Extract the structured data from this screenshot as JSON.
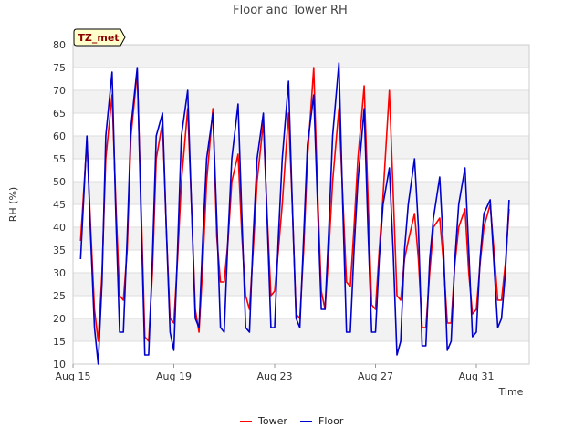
{
  "chart_data": {
    "type": "line",
    "title": "Floor and Tower RH",
    "xlabel": "Time",
    "ylabel": "RH (%)",
    "site_tag": "TZ_met",
    "xlim": [
      0,
      18.1
    ],
    "ylim": [
      10,
      80
    ],
    "yticks": [
      10,
      15,
      20,
      25,
      30,
      35,
      40,
      45,
      50,
      55,
      60,
      65,
      70,
      75,
      80
    ],
    "xticks": [
      {
        "label": "Aug 15",
        "value": 0
      },
      {
        "label": "Aug 19",
        "value": 4
      },
      {
        "label": "Aug 23",
        "value": 8
      },
      {
        "label": "Aug 27",
        "value": 12
      },
      {
        "label": "Aug 31",
        "value": 16
      }
    ],
    "grid": true,
    "legend_position": "bottom-center",
    "colors": {
      "Tower": "#ff0000",
      "Floor": "#0000cc",
      "band": "#f2f2f2",
      "grid": "#dddddd"
    },
    "series": [
      {
        "name": "Tower",
        "color": "#ff0000",
        "x": [
          0.3,
          0.55,
          0.7,
          0.85,
          1.0,
          1.15,
          1.3,
          1.55,
          1.7,
          1.85,
          2.0,
          2.15,
          2.3,
          2.55,
          2.7,
          2.85,
          3.0,
          3.15,
          3.3,
          3.55,
          3.7,
          3.85,
          4.0,
          4.15,
          4.3,
          4.55,
          4.7,
          4.85,
          5.0,
          5.15,
          5.3,
          5.55,
          5.7,
          5.85,
          6.0,
          6.15,
          6.3,
          6.55,
          6.7,
          6.85,
          7.0,
          7.15,
          7.3,
          7.55,
          7.7,
          7.85,
          8.0,
          8.15,
          8.3,
          8.55,
          8.7,
          8.85,
          9.0,
          9.15,
          9.3,
          9.55,
          9.7,
          9.85,
          10.0,
          10.15,
          10.3,
          10.55,
          10.7,
          10.85,
          11.0,
          11.15,
          11.3,
          11.55,
          11.7,
          11.85,
          12.0,
          12.15,
          12.3,
          12.55,
          12.7,
          12.85,
          13.0,
          13.15,
          13.3,
          13.55,
          13.7,
          13.85,
          14.0,
          14.15,
          14.3,
          14.55,
          14.7,
          14.85,
          15.0,
          15.15,
          15.3,
          15.55,
          15.7,
          15.85,
          16.0,
          16.15,
          16.3,
          16.55,
          16.7,
          16.85,
          17.0,
          17.15,
          17.3
        ],
        "values": [
          37,
          59,
          40,
          22,
          15,
          30,
          55,
          69,
          45,
          25,
          24,
          35,
          60,
          74,
          45,
          16,
          15,
          30,
          55,
          63,
          40,
          20,
          19,
          33,
          50,
          66,
          45,
          22,
          17,
          32,
          50,
          66,
          38,
          28,
          28,
          37,
          50,
          56,
          38,
          25,
          22,
          35,
          50,
          63,
          43,
          25,
          26,
          35,
          45,
          65,
          45,
          21,
          20,
          35,
          55,
          75,
          48,
          26,
          22,
          35,
          50,
          66,
          47,
          28,
          27,
          40,
          55,
          71,
          47,
          23,
          22,
          35,
          47,
          70,
          48,
          25,
          24,
          33,
          37,
          43,
          33,
          18,
          18,
          30,
          40,
          42,
          32,
          19,
          19,
          32,
          40,
          44,
          30,
          21,
          22,
          32,
          40,
          45,
          35,
          24,
          24,
          32,
          44
        ]
      },
      {
        "name": "Floor",
        "color": "#0000cc",
        "x": [
          0.3,
          0.55,
          0.7,
          0.85,
          1.0,
          1.15,
          1.3,
          1.55,
          1.7,
          1.85,
          2.0,
          2.15,
          2.3,
          2.55,
          2.7,
          2.85,
          3.0,
          3.15,
          3.3,
          3.55,
          3.7,
          3.85,
          4.0,
          4.15,
          4.3,
          4.55,
          4.7,
          4.85,
          5.0,
          5.15,
          5.3,
          5.55,
          5.7,
          5.85,
          6.0,
          6.15,
          6.3,
          6.55,
          6.7,
          6.85,
          7.0,
          7.15,
          7.3,
          7.55,
          7.7,
          7.85,
          8.0,
          8.15,
          8.3,
          8.55,
          8.7,
          8.85,
          9.0,
          9.15,
          9.3,
          9.55,
          9.7,
          9.85,
          10.0,
          10.15,
          10.3,
          10.55,
          10.7,
          10.85,
          11.0,
          11.15,
          11.3,
          11.55,
          11.7,
          11.85,
          12.0,
          12.15,
          12.3,
          12.55,
          12.7,
          12.85,
          13.0,
          13.15,
          13.3,
          13.55,
          13.7,
          13.85,
          14.0,
          14.15,
          14.3,
          14.55,
          14.7,
          14.85,
          15.0,
          15.15,
          15.3,
          15.55,
          15.7,
          15.85,
          16.0,
          16.15,
          16.3,
          16.55,
          16.7,
          16.85,
          17.0,
          17.15,
          17.3
        ],
        "values": [
          33,
          60,
          38,
          18,
          10,
          28,
          60,
          74,
          42,
          17,
          17,
          38,
          62,
          75,
          42,
          12,
          12,
          33,
          60,
          65,
          40,
          17,
          13,
          35,
          60,
          70,
          45,
          20,
          18,
          38,
          55,
          65,
          42,
          18,
          17,
          38,
          55,
          67,
          42,
          18,
          17,
          38,
          55,
          65,
          42,
          18,
          18,
          38,
          55,
          72,
          45,
          20,
          18,
          38,
          58,
          69,
          45,
          22,
          22,
          40,
          60,
          76,
          45,
          17,
          17,
          35,
          50,
          66,
          40,
          17,
          17,
          33,
          45,
          53,
          35,
          12,
          15,
          35,
          45,
          55,
          40,
          14,
          14,
          33,
          42,
          51,
          35,
          13,
          15,
          33,
          45,
          53,
          35,
          16,
          17,
          33,
          43,
          46,
          32,
          18,
          20,
          30,
          46
        ]
      }
    ]
  }
}
